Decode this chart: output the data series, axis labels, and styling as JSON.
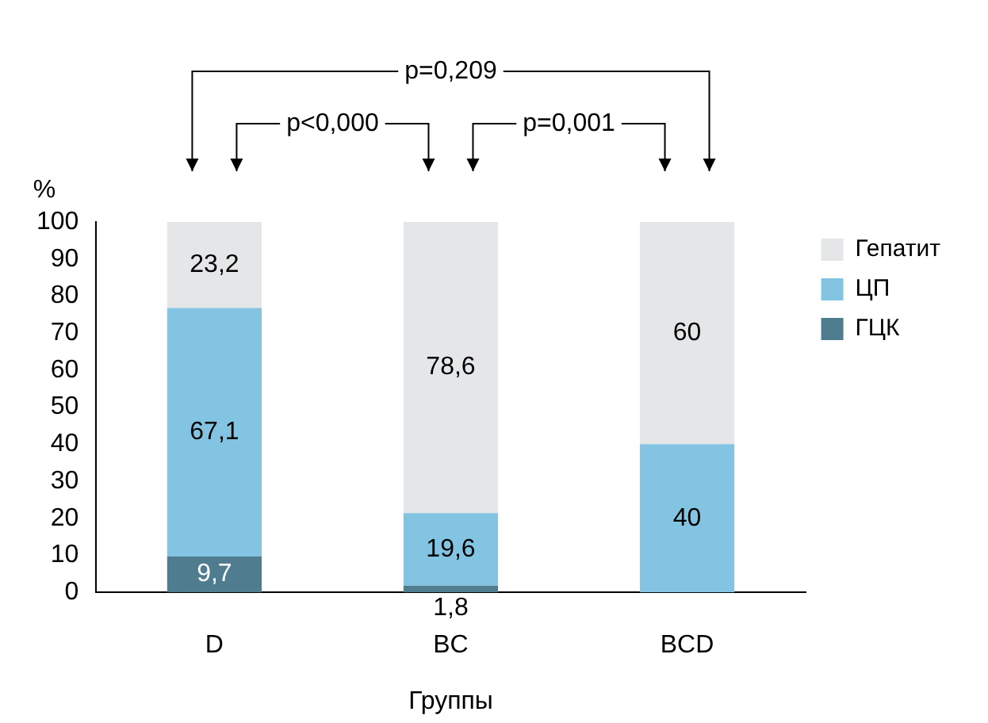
{
  "chart_data": {
    "type": "bar",
    "stacked": true,
    "xlabel": "Группы",
    "ylabel": "%",
    "categories": [
      "D",
      "BC",
      "BCD"
    ],
    "series": [
      {
        "name": "ГЦК",
        "color": "#4f7d8f",
        "values": [
          9.7,
          1.8,
          null
        ],
        "value_labels": [
          "9,7",
          "1,8",
          null
        ]
      },
      {
        "name": "ЦП",
        "color": "#82c4e2",
        "values": [
          67.1,
          19.6,
          40
        ],
        "value_labels": [
          "67,1",
          "19,6",
          "40"
        ]
      },
      {
        "name": "Гепатит",
        "color": "#e5e6e8",
        "values": [
          23.2,
          78.6,
          60
        ],
        "value_labels": [
          "23,2",
          "78,6",
          "60"
        ]
      }
    ],
    "ylim": [
      0,
      100
    ],
    "yticks": [
      0,
      10,
      20,
      30,
      40,
      50,
      60,
      70,
      80,
      90,
      100
    ],
    "grid": false,
    "legend": "top right",
    "annotations": [
      "p=0,209",
      "p<0,000",
      "p=0,001"
    ]
  }
}
